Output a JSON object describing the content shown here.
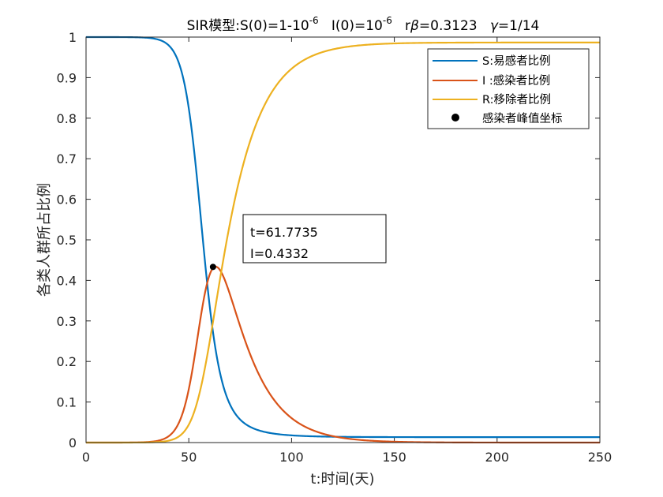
{
  "chart_data": {
    "type": "line",
    "title": {
      "prefix": "SIR模型:S(0)=1-10",
      "exp1": "-6",
      "mid": "   I(0)=10",
      "exp2": "-6",
      "rb_prefix": "   r",
      "beta_symbol": "β",
      "rb_value": "=0.3123   ",
      "gamma_symbol": "γ",
      "gamma_value": "=1/14"
    },
    "xlabel": "t:时间(天)",
    "ylabel": "各类人群所占比例",
    "xlim": [
      0,
      250
    ],
    "ylim": [
      0,
      1
    ],
    "xticks": [
      0,
      50,
      100,
      150,
      200,
      250
    ],
    "xtick_labels": [
      "0",
      "50",
      "100",
      "150",
      "200",
      "250"
    ],
    "yticks": [
      0,
      0.1,
      0.2,
      0.3,
      0.4,
      0.5,
      0.6,
      0.7,
      0.8,
      0.9,
      1
    ],
    "ytick_labels": [
      "0",
      "0.1",
      "0.2",
      "0.3",
      "0.4",
      "0.5",
      "0.6",
      "0.7",
      "0.8",
      "0.9",
      "1"
    ],
    "model": {
      "beta": 0.3123,
      "gamma_num": 1,
      "gamma_den": 14,
      "S0": 0.999999,
      "I0": 1e-06,
      "R0": 0,
      "t_max": 250
    },
    "series": [
      {
        "name": "S:易感者比例",
        "key": "S",
        "color": "#0072BD"
      },
      {
        "name": "I :感染者比例",
        "key": "I",
        "color": "#D95319"
      },
      {
        "name": "R:移除者比例",
        "key": "R",
        "color": "#EDB120"
      }
    ],
    "peak": {
      "label": "感染者峰值坐标",
      "t": 61.7735,
      "I": 0.4332,
      "color": "#000000"
    },
    "annotation": {
      "line1": "t=61.7735",
      "line2": "I=0.4332"
    }
  }
}
